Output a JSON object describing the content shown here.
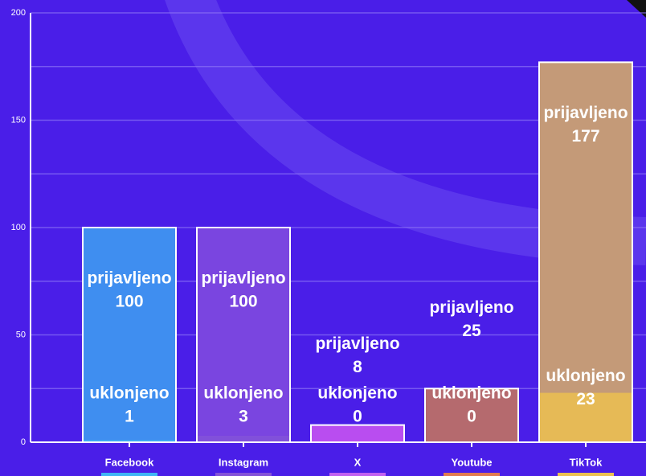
{
  "chart_data": {
    "type": "bar",
    "categories": [
      "Facebook",
      "Instagram",
      "X",
      "Youtube",
      "TikTok"
    ],
    "series": [
      {
        "name": "prijavljeno",
        "values": [
          100,
          100,
          8,
          25,
          177
        ],
        "colors": [
          "#3f8ef0",
          "#7a45e0",
          "#b94df0",
          "#b56a6e",
          "#c49a78"
        ]
      },
      {
        "name": "uklonjeno",
        "values": [
          1,
          3,
          0,
          0,
          23
        ],
        "colors": [
          "#3fb4f5",
          "#8352d8",
          "#c060f0",
          "#e07a50",
          "#ecc050"
        ]
      }
    ],
    "ylim": [
      0,
      200
    ],
    "yticks": [
      0,
      50,
      100,
      150,
      200
    ],
    "grid_yticks": [
      25,
      75,
      125,
      175
    ],
    "grid": true
  }
}
